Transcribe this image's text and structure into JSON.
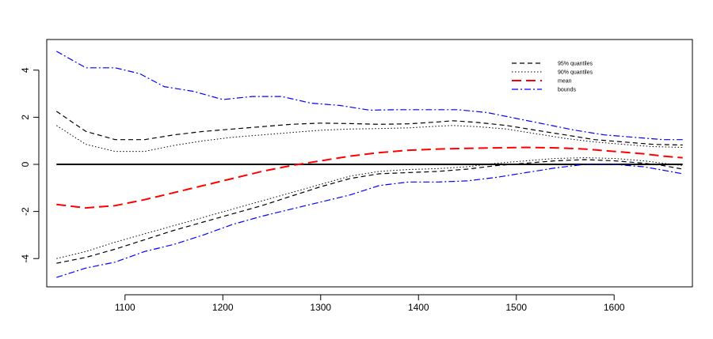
{
  "chart_data": {
    "type": "line",
    "xlim": [
      1020,
      1680
    ],
    "ylim": [
      -5.2,
      5.3
    ],
    "x_ticks": [
      1100,
      1200,
      1300,
      1400,
      1500,
      1600
    ],
    "y_ticks": [
      -4,
      -2,
      0,
      2,
      4
    ],
    "grid": false,
    "legend_position": "top-right",
    "reference_line": {
      "y": 0,
      "color": "#000000"
    },
    "series": [
      {
        "name": "95% quantiles",
        "role": "upper",
        "color": "#000000",
        "dash": "dashed",
        "x": [
          1030,
          1060,
          1090,
          1120,
          1150,
          1180,
          1210,
          1240,
          1270,
          1300,
          1330,
          1360,
          1390,
          1420,
          1435,
          1460,
          1490,
          1520,
          1550,
          1580,
          1610,
          1640,
          1670
        ],
        "values": [
          2.25,
          1.4,
          1.05,
          1.05,
          1.25,
          1.4,
          1.5,
          1.6,
          1.7,
          1.75,
          1.73,
          1.7,
          1.72,
          1.8,
          1.85,
          1.78,
          1.65,
          1.45,
          1.25,
          1.05,
          0.95,
          0.85,
          0.82
        ]
      },
      {
        "name": "95% quantiles",
        "role": "lower",
        "color": "#000000",
        "dash": "dashed",
        "x": [
          1030,
          1060,
          1090,
          1120,
          1150,
          1180,
          1210,
          1240,
          1270,
          1300,
          1330,
          1360,
          1390,
          1420,
          1450,
          1480,
          1510,
          1540,
          1570,
          1600,
          1630,
          1650,
          1670
        ],
        "values": [
          -4.2,
          -3.95,
          -3.6,
          -3.2,
          -2.8,
          -2.45,
          -2.1,
          -1.75,
          -1.35,
          -0.95,
          -0.6,
          -0.4,
          -0.35,
          -0.3,
          -0.2,
          -0.05,
          0.05,
          0.15,
          0.2,
          0.15,
          0.05,
          -0.05,
          -0.2
        ]
      },
      {
        "name": "90% quantiles",
        "role": "upper",
        "color": "#000000",
        "dash": "dotted",
        "x": [
          1030,
          1060,
          1090,
          1120,
          1150,
          1180,
          1210,
          1240,
          1270,
          1300,
          1330,
          1360,
          1390,
          1420,
          1435,
          1460,
          1490,
          1520,
          1550,
          1580,
          1610,
          1640,
          1670
        ],
        "values": [
          1.65,
          0.85,
          0.55,
          0.55,
          0.8,
          1.0,
          1.15,
          1.25,
          1.35,
          1.45,
          1.5,
          1.52,
          1.55,
          1.62,
          1.65,
          1.6,
          1.5,
          1.3,
          1.1,
          0.95,
          0.85,
          0.75,
          0.72
        ]
      },
      {
        "name": "90% quantiles",
        "role": "lower",
        "color": "#000000",
        "dash": "dotted",
        "x": [
          1030,
          1060,
          1090,
          1120,
          1150,
          1180,
          1210,
          1240,
          1270,
          1300,
          1330,
          1360,
          1390,
          1420,
          1450,
          1480,
          1510,
          1540,
          1570,
          1600,
          1630,
          1650,
          1670
        ],
        "values": [
          -4.0,
          -3.7,
          -3.3,
          -2.95,
          -2.6,
          -2.25,
          -1.9,
          -1.55,
          -1.2,
          -0.85,
          -0.5,
          -0.3,
          -0.22,
          -0.18,
          -0.1,
          0.05,
          0.15,
          0.25,
          0.28,
          0.25,
          0.15,
          0.05,
          -0.05
        ]
      },
      {
        "name": "mean",
        "color": "#ff0000",
        "dash": "longdash",
        "x": [
          1030,
          1060,
          1090,
          1120,
          1150,
          1180,
          1210,
          1240,
          1270,
          1300,
          1330,
          1360,
          1390,
          1420,
          1450,
          1480,
          1510,
          1540,
          1570,
          1600,
          1630,
          1650,
          1670
        ],
        "values": [
          -1.7,
          -1.85,
          -1.75,
          -1.5,
          -1.2,
          -0.9,
          -0.6,
          -0.3,
          -0.05,
          0.15,
          0.35,
          0.5,
          0.6,
          0.65,
          0.68,
          0.7,
          0.72,
          0.7,
          0.65,
          0.55,
          0.45,
          0.35,
          0.28
        ]
      },
      {
        "name": "bounds",
        "role": "upper",
        "color": "#0000ff",
        "dash": "dotdash",
        "x": [
          1030,
          1060,
          1090,
          1115,
          1140,
          1170,
          1200,
          1230,
          1260,
          1290,
          1320,
          1350,
          1380,
          1410,
          1440,
          1470,
          1500,
          1530,
          1560,
          1590,
          1620,
          1650,
          1670
        ],
        "values": [
          4.8,
          4.1,
          4.1,
          3.85,
          3.3,
          3.1,
          2.75,
          2.88,
          2.88,
          2.6,
          2.5,
          2.3,
          2.32,
          2.32,
          2.32,
          2.2,
          1.95,
          1.7,
          1.45,
          1.25,
          1.15,
          1.05,
          1.05
        ]
      },
      {
        "name": "bounds",
        "role": "lower",
        "color": "#0000ff",
        "dash": "dotdash",
        "x": [
          1030,
          1060,
          1090,
          1120,
          1150,
          1180,
          1210,
          1240,
          1270,
          1300,
          1330,
          1360,
          1390,
          1420,
          1450,
          1480,
          1510,
          1540,
          1570,
          1600,
          1630,
          1650,
          1670
        ],
        "values": [
          -4.8,
          -4.4,
          -4.15,
          -3.7,
          -3.4,
          -3.0,
          -2.55,
          -2.2,
          -1.9,
          -1.6,
          -1.3,
          -0.9,
          -0.75,
          -0.75,
          -0.7,
          -0.55,
          -0.35,
          -0.15,
          0.0,
          0.0,
          -0.1,
          -0.25,
          -0.4
        ]
      }
    ],
    "legend": [
      {
        "label": "95% quantiles",
        "color": "#000000",
        "dash": "dashed"
      },
      {
        "label": "90% quantiles",
        "color": "#000000",
        "dash": "dotted"
      },
      {
        "label": "mean",
        "color": "#ff0000",
        "dash": "longdash"
      },
      {
        "label": "bounds",
        "color": "#0000ff",
        "dash": "dotdash"
      }
    ]
  }
}
